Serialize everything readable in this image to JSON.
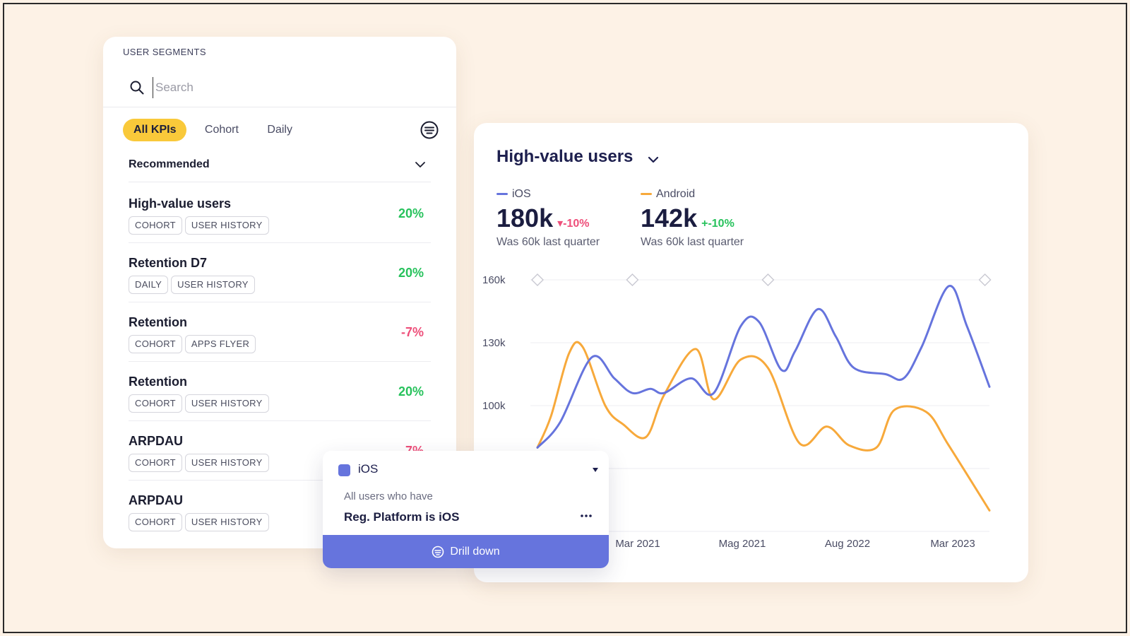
{
  "segments": {
    "title": "USER SEGMENTS",
    "search": {
      "placeholder": "Search",
      "value": ""
    },
    "tabs": [
      {
        "label": "All KPIs",
        "active": true
      },
      {
        "label": "Cohort",
        "active": false
      },
      {
        "label": "Daily",
        "active": false
      }
    ],
    "group_label": "Recommended",
    "kpis": [
      {
        "name": "High-value users",
        "tags": [
          "COHORT",
          "USER HISTORY"
        ],
        "value": "20%",
        "trend": "pos"
      },
      {
        "name": "Retention D7",
        "tags": [
          "DAILY",
          "USER HISTORY"
        ],
        "value": "20%",
        "trend": "pos"
      },
      {
        "name": "Retention",
        "tags": [
          "COHORT",
          "APPS FLYER"
        ],
        "value": "-7%",
        "trend": "neg"
      },
      {
        "name": "Retention",
        "tags": [
          "COHORT",
          "USER HISTORY"
        ],
        "value": "20%",
        "trend": "pos"
      },
      {
        "name": "ARPDAU",
        "tags": [
          "COHORT",
          "USER HISTORY"
        ],
        "value": "-7%",
        "trend": "neg"
      },
      {
        "name": "ARPDAU",
        "tags": [
          "COHORT",
          "USER HISTORY"
        ],
        "value": "",
        "trend": "pos"
      }
    ],
    "icons": {
      "search": "search-icon",
      "filter": "filter-icon",
      "chevron": "chevron-down-icon"
    }
  },
  "chart_card": {
    "title": "High-value users",
    "stats": [
      {
        "series": "iOS",
        "color": "#6674dd",
        "value": "180k",
        "change": "▾-10%",
        "change_color": "#ee4f7a",
        "sub": "Was 60k last quarter"
      },
      {
        "series": "Android",
        "color": "#f7a93b",
        "value": "142k",
        "change": "+-10%",
        "change_color": "#27c25c",
        "sub": "Was 60k last quarter"
      }
    ]
  },
  "chart_data": {
    "type": "line",
    "x_tick_labels": [
      "Mar 2021",
      "Mag 2021",
      "Aug 2022",
      "Mar 2023"
    ],
    "y_tick_labels": [
      "160k",
      "130k",
      "100k"
    ],
    "ylim": [
      40,
      160
    ],
    "grid": true,
    "x_range": [
      0,
      100
    ],
    "series": [
      {
        "name": "iOS",
        "color": "#6674dd",
        "x": [
          0,
          5,
          12,
          17,
          21,
          25,
          28,
          34,
          39,
          45,
          49,
          54,
          57,
          62,
          66,
          70,
          77,
          81,
          85,
          91,
          95,
          100
        ],
        "y": [
          80,
          92,
          123,
          113,
          106,
          108,
          106,
          113,
          106,
          138,
          140,
          117,
          126,
          146,
          133,
          118,
          115,
          113,
          128,
          157,
          138,
          109
        ]
      },
      {
        "name": "Android",
        "color": "#f7a93b",
        "x": [
          0,
          3,
          7,
          10,
          15,
          19,
          24,
          28,
          35,
          39,
          45,
          51,
          58,
          64,
          69,
          75,
          79,
          86,
          91,
          100
        ],
        "y": [
          80,
          95,
          125,
          128,
          100,
          91,
          85,
          105,
          127,
          103,
          122,
          118,
          82,
          90,
          81,
          80,
          98,
          97,
          81,
          50
        ]
      }
    ],
    "top_markers_x": [
      0,
      21,
      51,
      99
    ]
  },
  "popup": {
    "series_label": "iOS",
    "swatch_color": "#6674dd",
    "subtitle": "All users who have",
    "condition": "Reg. Platform is iOS",
    "button_label": "Drill down"
  }
}
